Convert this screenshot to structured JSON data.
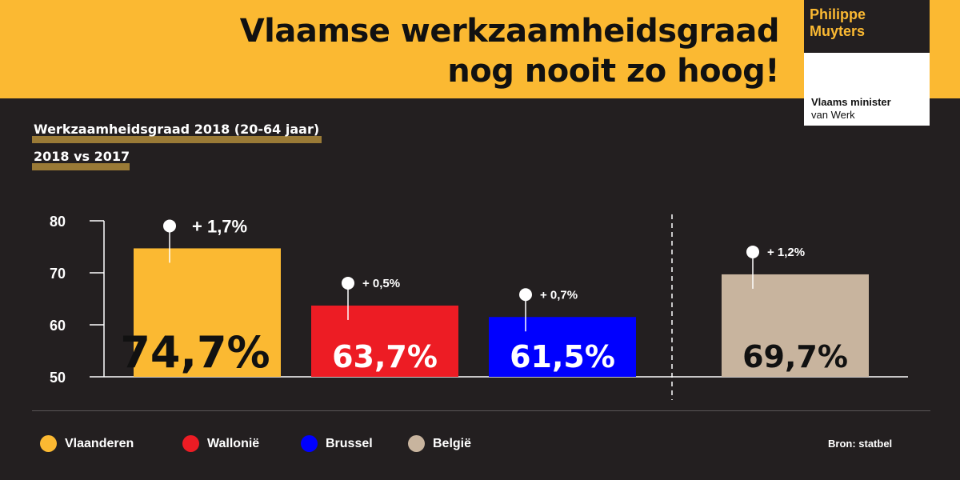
{
  "header": {
    "title_line1": "Vlaamse werkzaamheidsgraad",
    "title_line2": "nog nooit zo hoog!",
    "logo_name": "Philippe\nMuyters",
    "logo_role_line1": "Vlaams minister",
    "logo_role_line2": "van Werk",
    "bg_color": "#fbb932"
  },
  "subtitle1": "Werkzaamheidsgraad 2018 (20-64 jaar)",
  "subtitle2": "2018 vs 2017",
  "chart_data": {
    "type": "bar",
    "ylim": [
      50,
      80
    ],
    "yticks": [
      80,
      70,
      60,
      50
    ],
    "categories": [
      "Vlaanderen",
      "Wallonië",
      "Brussel",
      "België"
    ],
    "values": [
      74.7,
      63.7,
      61.5,
      69.7
    ],
    "value_labels": [
      "74,7%",
      "63,7%",
      "61,5%",
      "69,7%"
    ],
    "change_labels": [
      "+ 1,7%",
      "+ 0,5%",
      "+ 0,7%",
      "+ 1,2%"
    ],
    "colors": [
      "#fbb932",
      "#ed1c24",
      "#0000ff",
      "#c8b49e"
    ],
    "value_label_colors": [
      "#111111",
      "#ffffff",
      "#ffffff",
      "#111111"
    ],
    "grid": false,
    "separator_before": "België"
  },
  "legend": [
    {
      "label": "Vlaanderen",
      "color": "#fbb932"
    },
    {
      "label": "Wallonië",
      "color": "#ed1c24"
    },
    {
      "label": "Brussel",
      "color": "#0000ff"
    },
    {
      "label": "België",
      "color": "#c8b49e"
    }
  ],
  "source": "Bron: statbel"
}
